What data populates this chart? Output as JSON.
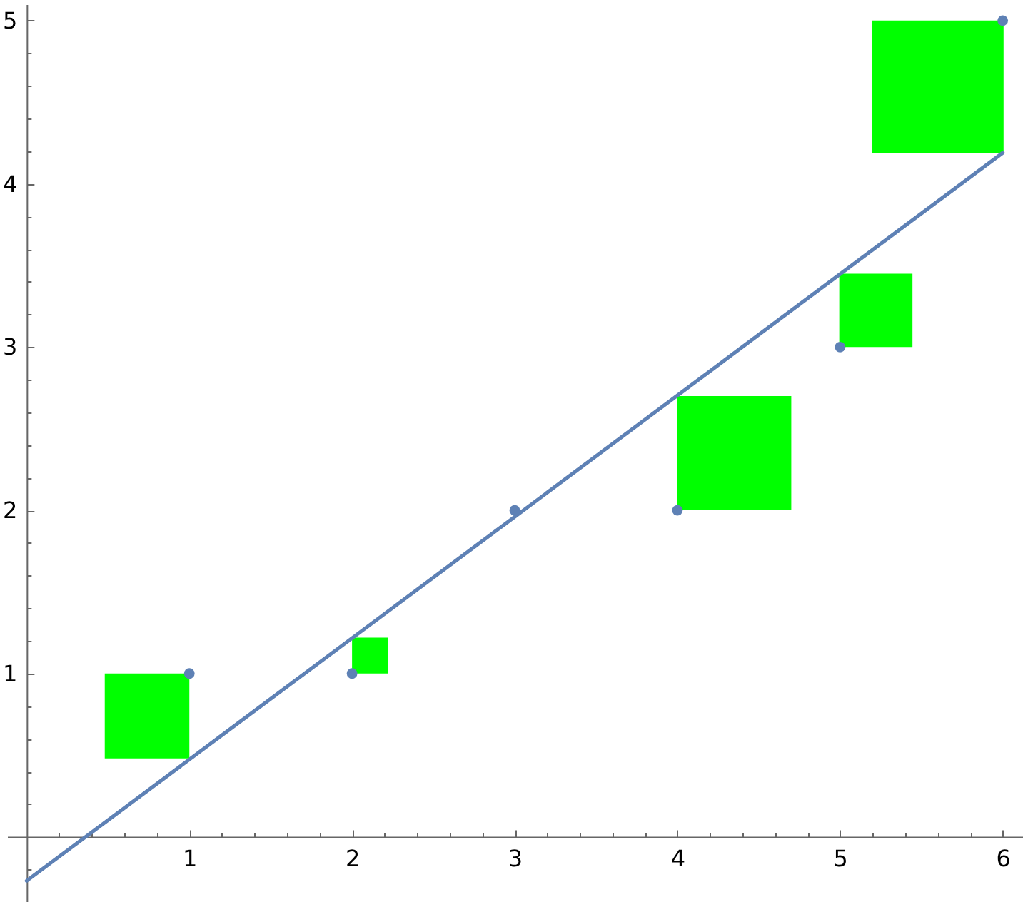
{
  "chart_data": {
    "type": "scatter",
    "xlim": [
      -0.12,
      6.12
    ],
    "ylim": [
      -0.4,
      5.1
    ],
    "xticks": [
      {
        "value": 0.2,
        "label": null
      },
      {
        "value": 0.4,
        "label": null
      },
      {
        "value": 0.6,
        "label": null
      },
      {
        "value": 0.8,
        "label": null
      },
      1,
      {
        "value": 1.2,
        "label": null
      },
      {
        "value": 1.4,
        "label": null
      },
      {
        "value": 1.6,
        "label": null
      },
      {
        "value": 1.8,
        "label": null
      },
      2,
      {
        "value": 2.2,
        "label": null
      },
      {
        "value": 2.4,
        "label": null
      },
      {
        "value": 2.6,
        "label": null
      },
      {
        "value": 2.8,
        "label": null
      },
      3,
      {
        "value": 3.2,
        "label": null
      },
      {
        "value": 3.4,
        "label": null
      },
      {
        "value": 3.6,
        "label": null
      },
      {
        "value": 3.8,
        "label": null
      },
      4,
      {
        "value": 4.2,
        "label": null
      },
      {
        "value": 4.4,
        "label": null
      },
      {
        "value": 4.6,
        "label": null
      },
      {
        "value": 4.8,
        "label": null
      },
      5,
      {
        "value": 5.2,
        "label": null
      },
      {
        "value": 5.4,
        "label": null
      },
      {
        "value": 5.6,
        "label": null
      },
      {
        "value": 5.8,
        "label": null
      },
      6
    ],
    "yticks": [
      {
        "value": -0.2,
        "label": null
      },
      {
        "value": 0.2,
        "label": null
      },
      {
        "value": 0.4,
        "label": null
      },
      {
        "value": 0.6,
        "label": null
      },
      {
        "value": 0.8,
        "label": null
      },
      1,
      {
        "value": 1.2,
        "label": null
      },
      {
        "value": 1.4,
        "label": null
      },
      {
        "value": 1.6,
        "label": null
      },
      {
        "value": 1.8,
        "label": null
      },
      2,
      {
        "value": 2.2,
        "label": null
      },
      {
        "value": 2.4,
        "label": null
      },
      {
        "value": 2.6,
        "label": null
      },
      {
        "value": 2.8,
        "label": null
      },
      3,
      {
        "value": 3.2,
        "label": null
      },
      {
        "value": 3.4,
        "label": null
      },
      {
        "value": 3.6,
        "label": null
      },
      {
        "value": 3.8,
        "label": null
      },
      4,
      {
        "value": 4.2,
        "label": null
      },
      {
        "value": 4.4,
        "label": null
      },
      {
        "value": 4.6,
        "label": null
      },
      {
        "value": 4.8,
        "label": null
      },
      5
    ],
    "series": [
      {
        "type": "bar",
        "color": "#00ff00",
        "x": [
          0.74,
          2.11,
          4.35,
          5.22,
          5.6
        ],
        "values": [
          0.52,
          0.22,
          0.7,
          0.45,
          0.81
        ],
        "base": [
          0.48,
          1,
          2,
          3,
          4.19
        ]
      },
      {
        "type": "line",
        "color": "#5e81b5",
        "line_style": "solid",
        "x": [
          0,
          6
        ],
        "values": [
          -0.27,
          4.19
        ]
      },
      {
        "color": "#5e81b5",
        "marker": "circle",
        "x": [
          1,
          2,
          3,
          4,
          5,
          6
        ],
        "values": [
          1,
          1,
          2,
          2,
          3,
          5
        ]
      }
    ]
  }
}
